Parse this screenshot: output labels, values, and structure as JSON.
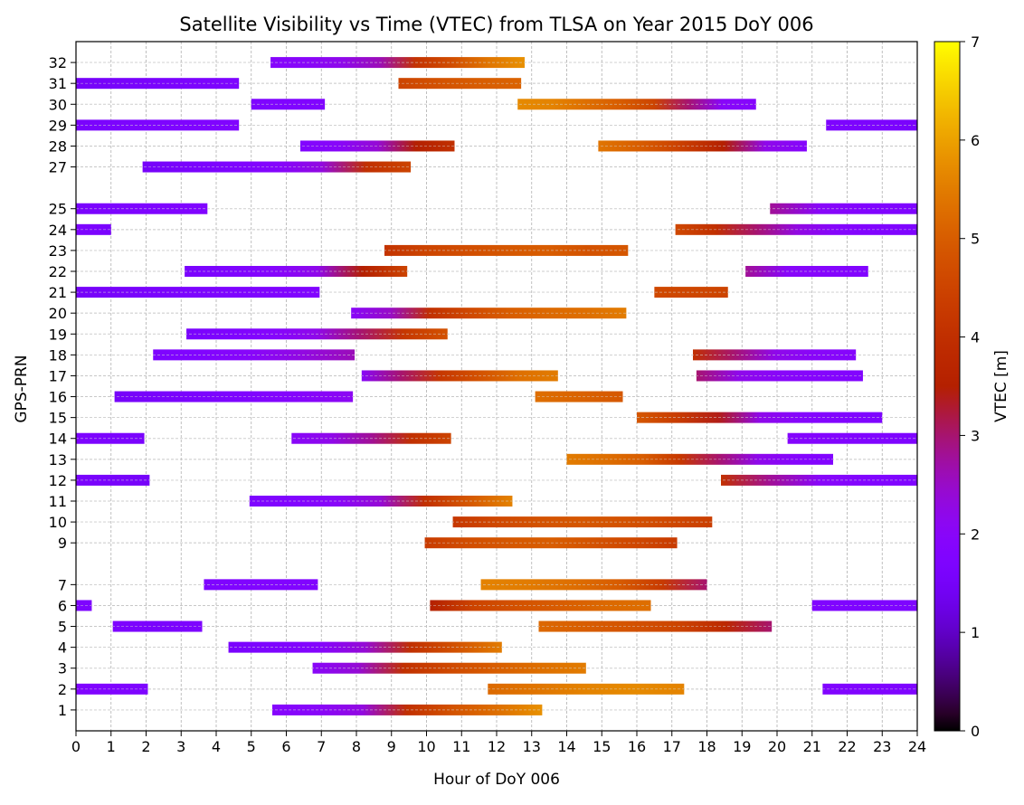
{
  "chart_data": {
    "type": "timeline",
    "title": "Satellite Visibility vs Time (VTEC) from TLSA on Year 2015 DoY 006",
    "xlabel": "Hour of DoY 006",
    "ylabel": "GPS-PRN",
    "xlim": [
      0,
      24
    ],
    "x_ticks": [
      0,
      1,
      2,
      3,
      4,
      5,
      6,
      7,
      8,
      9,
      10,
      11,
      12,
      13,
      14,
      15,
      16,
      17,
      18,
      19,
      20,
      21,
      22,
      23,
      24
    ],
    "y_ticks": [
      1,
      2,
      3,
      4,
      5,
      6,
      7,
      9,
      10,
      11,
      12,
      13,
      14,
      15,
      16,
      17,
      18,
      19,
      20,
      21,
      22,
      23,
      24,
      25,
      27,
      28,
      29,
      30,
      31,
      32
    ],
    "grid": true,
    "colorbar": {
      "label": "VTEC [m]",
      "colormap": "gnuplot",
      "range": [
        0,
        7
      ],
      "ticks": [
        0,
        1,
        2,
        3,
        4,
        5,
        6,
        7
      ]
    },
    "series": [
      {
        "prn": 32,
        "segments": [
          {
            "start": 5.55,
            "end": 12.8,
            "vtec": [
              1.9,
              2.0,
              2.2,
              2.6,
              4.1,
              4.7,
              5.4,
              5.8
            ]
          }
        ]
      },
      {
        "prn": 31,
        "segments": [
          {
            "start": 0.0,
            "end": 4.65,
            "vtec": [
              1.5,
              1.6,
              1.7
            ]
          },
          {
            "start": 9.2,
            "end": 12.7,
            "vtec": [
              4.5,
              4.8,
              5.0,
              5.1
            ]
          }
        ]
      },
      {
        "prn": 30,
        "segments": [
          {
            "start": 5.0,
            "end": 7.1,
            "vtec": [
              1.7,
              1.8
            ]
          },
          {
            "start": 12.6,
            "end": 19.4,
            "vtec": [
              5.7,
              5.6,
              5.3,
              5.0,
              4.5,
              3.0,
              2.0,
              1.9
            ]
          }
        ]
      },
      {
        "prn": 29,
        "segments": [
          {
            "start": 0.0,
            "end": 4.65,
            "vtec": [
              1.6,
              1.7,
              1.8
            ]
          },
          {
            "start": 21.4,
            "end": 24.0,
            "vtec": [
              1.7,
              1.6
            ]
          }
        ]
      },
      {
        "prn": 28,
        "segments": [
          {
            "start": 6.4,
            "end": 10.8,
            "vtec": [
              1.8,
              2.0,
              2.4,
              3.5,
              4.0
            ]
          },
          {
            "start": 14.9,
            "end": 20.85,
            "vtec": [
              5.4,
              5.0,
              4.4,
              3.5,
              2.2,
              1.9
            ]
          }
        ]
      },
      {
        "prn": 27,
        "segments": [
          {
            "start": 1.9,
            "end": 9.55,
            "vtec": [
              1.5,
              1.6,
              1.7,
              1.9,
              2.3,
              4.0,
              4.5
            ]
          }
        ]
      },
      {
        "prn": 25,
        "segments": [
          {
            "start": 0.0,
            "end": 3.75,
            "vtec": [
              1.6,
              1.7,
              1.8
            ]
          },
          {
            "start": 19.8,
            "end": 24.0,
            "vtec": [
              2.8,
              2.0,
              1.8,
              1.7
            ]
          }
        ]
      },
      {
        "prn": 24,
        "segments": [
          {
            "start": 0.0,
            "end": 1.0,
            "vtec": [
              1.7,
              1.6
            ]
          },
          {
            "start": 17.1,
            "end": 24.0,
            "vtec": [
              4.6,
              4.0,
              3.0,
              2.3,
              1.9,
              1.8,
              1.7
            ]
          }
        ]
      },
      {
        "prn": 23,
        "segments": [
          {
            "start": 8.8,
            "end": 15.75,
            "vtec": [
              4.1,
              4.5,
              4.7,
              4.9,
              5.0,
              4.8,
              4.9
            ]
          }
        ]
      },
      {
        "prn": 22,
        "segments": [
          {
            "start": 3.1,
            "end": 9.45,
            "vtec": [
              1.6,
              1.7,
              1.9,
              2.2,
              3.5,
              4.5
            ]
          },
          {
            "start": 19.1,
            "end": 22.6,
            "vtec": [
              2.8,
              2.0,
              1.9,
              1.8
            ]
          }
        ]
      },
      {
        "prn": 21,
        "segments": [
          {
            "start": 0.0,
            "end": 6.95,
            "vtec": [
              1.5,
              1.6,
              1.7,
              1.8
            ]
          },
          {
            "start": 16.5,
            "end": 18.6,
            "vtec": [
              4.6,
              4.5
            ]
          }
        ]
      },
      {
        "prn": 20,
        "segments": [
          {
            "start": 7.85,
            "end": 15.7,
            "vtec": [
              2.0,
              2.5,
              4.0,
              4.6,
              5.0,
              5.2,
              5.3,
              5.5
            ]
          }
        ]
      },
      {
        "prn": 19,
        "segments": [
          {
            "start": 3.15,
            "end": 10.6,
            "vtec": [
              1.6,
              1.7,
              1.9,
              2.2,
              3.0,
              4.2,
              4.8
            ]
          }
        ]
      },
      {
        "prn": 18,
        "segments": [
          {
            "start": 2.2,
            "end": 7.95,
            "vtec": [
              1.7,
              1.8,
              2.0,
              2.3,
              2.6
            ]
          },
          {
            "start": 17.6,
            "end": 22.25,
            "vtec": [
              4.0,
              3.0,
              2.2,
              2.0,
              1.9
            ]
          }
        ]
      },
      {
        "prn": 17,
        "segments": [
          {
            "start": 8.15,
            "end": 13.75,
            "vtec": [
              2.0,
              3.0,
              4.2,
              4.8,
              5.3,
              5.5
            ]
          },
          {
            "start": 17.7,
            "end": 22.45,
            "vtec": [
              3.0,
              2.2,
              2.0,
              1.9,
              1.8
            ]
          }
        ]
      },
      {
        "prn": 16,
        "segments": [
          {
            "start": 1.1,
            "end": 7.9,
            "vtec": [
              1.5,
              1.6,
              1.7,
              1.9,
              2.1
            ]
          },
          {
            "start": 13.1,
            "end": 15.6,
            "vtec": [
              5.3,
              5.1,
              4.9
            ]
          }
        ]
      },
      {
        "prn": 15,
        "segments": [
          {
            "start": 16.0,
            "end": 23.0,
            "vtec": [
              4.9,
              4.3,
              3.4,
              2.2,
              1.9,
              1.8,
              1.7
            ]
          }
        ]
      },
      {
        "prn": 14,
        "segments": [
          {
            "start": 0.0,
            "end": 1.95,
            "vtec": [
              1.7,
              1.6
            ]
          },
          {
            "start": 6.15,
            "end": 10.7,
            "vtec": [
              2.0,
              2.2,
              2.8,
              4.0,
              4.5
            ]
          },
          {
            "start": 20.3,
            "end": 24.0,
            "vtec": [
              1.9,
              1.8,
              1.7
            ]
          }
        ]
      },
      {
        "prn": 13,
        "segments": [
          {
            "start": 14.0,
            "end": 21.6,
            "vtec": [
              5.5,
              5.3,
              5.0,
              4.2,
              3.0,
              2.2,
              1.9,
              1.8
            ]
          }
        ]
      },
      {
        "prn": 12,
        "segments": [
          {
            "start": 0.0,
            "end": 2.1,
            "vtec": [
              1.6,
              1.5
            ]
          },
          {
            "start": 18.4,
            "end": 24.0,
            "vtec": [
              4.0,
              2.8,
              2.0,
              1.8,
              1.7
            ]
          }
        ]
      },
      {
        "prn": 11,
        "segments": [
          {
            "start": 4.95,
            "end": 12.45,
            "vtec": [
              1.7,
              1.8,
              2.0,
              2.4,
              4.0,
              4.9,
              5.6
            ]
          }
        ]
      },
      {
        "prn": 10,
        "segments": [
          {
            "start": 10.75,
            "end": 18.15,
            "vtec": [
              4.2,
              4.6,
              4.8,
              4.9,
              4.8,
              4.6,
              4.4
            ]
          }
        ]
      },
      {
        "prn": 9,
        "segments": [
          {
            "start": 9.95,
            "end": 17.15,
            "vtec": [
              4.3,
              4.7,
              4.9,
              5.0,
              4.8,
              4.6,
              4.3
            ]
          }
        ]
      },
      {
        "prn": 7,
        "segments": [
          {
            "start": 3.65,
            "end": 6.9,
            "vtec": [
              1.7,
              1.8,
              1.8
            ]
          },
          {
            "start": 11.55,
            "end": 18.0,
            "vtec": [
              5.6,
              5.5,
              5.3,
              5.0,
              4.3,
              3.0
            ]
          }
        ]
      },
      {
        "prn": 6,
        "segments": [
          {
            "start": 0.0,
            "end": 0.45,
            "vtec": [
              1.7
            ]
          },
          {
            "start": 10.1,
            "end": 16.4,
            "vtec": [
              3.5,
              4.5,
              4.8,
              5.0,
              5.2,
              5.3
            ]
          },
          {
            "start": 21.0,
            "end": 24.0,
            "vtec": [
              1.8,
              1.7,
              1.7
            ]
          }
        ]
      },
      {
        "prn": 5,
        "segments": [
          {
            "start": 1.05,
            "end": 3.6,
            "vtec": [
              1.7,
              1.6,
              1.7
            ]
          },
          {
            "start": 13.2,
            "end": 19.85,
            "vtec": [
              5.2,
              5.0,
              4.8,
              4.5,
              3.8,
              3.0
            ]
          }
        ]
      },
      {
        "prn": 4,
        "segments": [
          {
            "start": 4.35,
            "end": 12.15,
            "vtec": [
              1.6,
              1.7,
              1.9,
              2.4,
              4.0,
              4.8,
              5.5
            ]
          }
        ]
      },
      {
        "prn": 3,
        "segments": [
          {
            "start": 6.75,
            "end": 14.55,
            "vtec": [
              2.0,
              2.4,
              4.0,
              4.6,
              5.0,
              5.3,
              5.5
            ]
          }
        ]
      },
      {
        "prn": 2,
        "segments": [
          {
            "start": 0.0,
            "end": 2.05,
            "vtec": [
              1.8,
              1.7
            ]
          },
          {
            "start": 11.75,
            "end": 17.35,
            "vtec": [
              5.2,
              5.4,
              5.6,
              5.7,
              5.6
            ]
          },
          {
            "start": 21.3,
            "end": 24.0,
            "vtec": [
              1.8,
              1.7
            ]
          }
        ]
      },
      {
        "prn": 1,
        "segments": [
          {
            "start": 5.6,
            "end": 13.3,
            "vtec": [
              1.9,
              2.0,
              2.3,
              4.0,
              4.8,
              5.3,
              5.8
            ]
          }
        ]
      }
    ]
  }
}
